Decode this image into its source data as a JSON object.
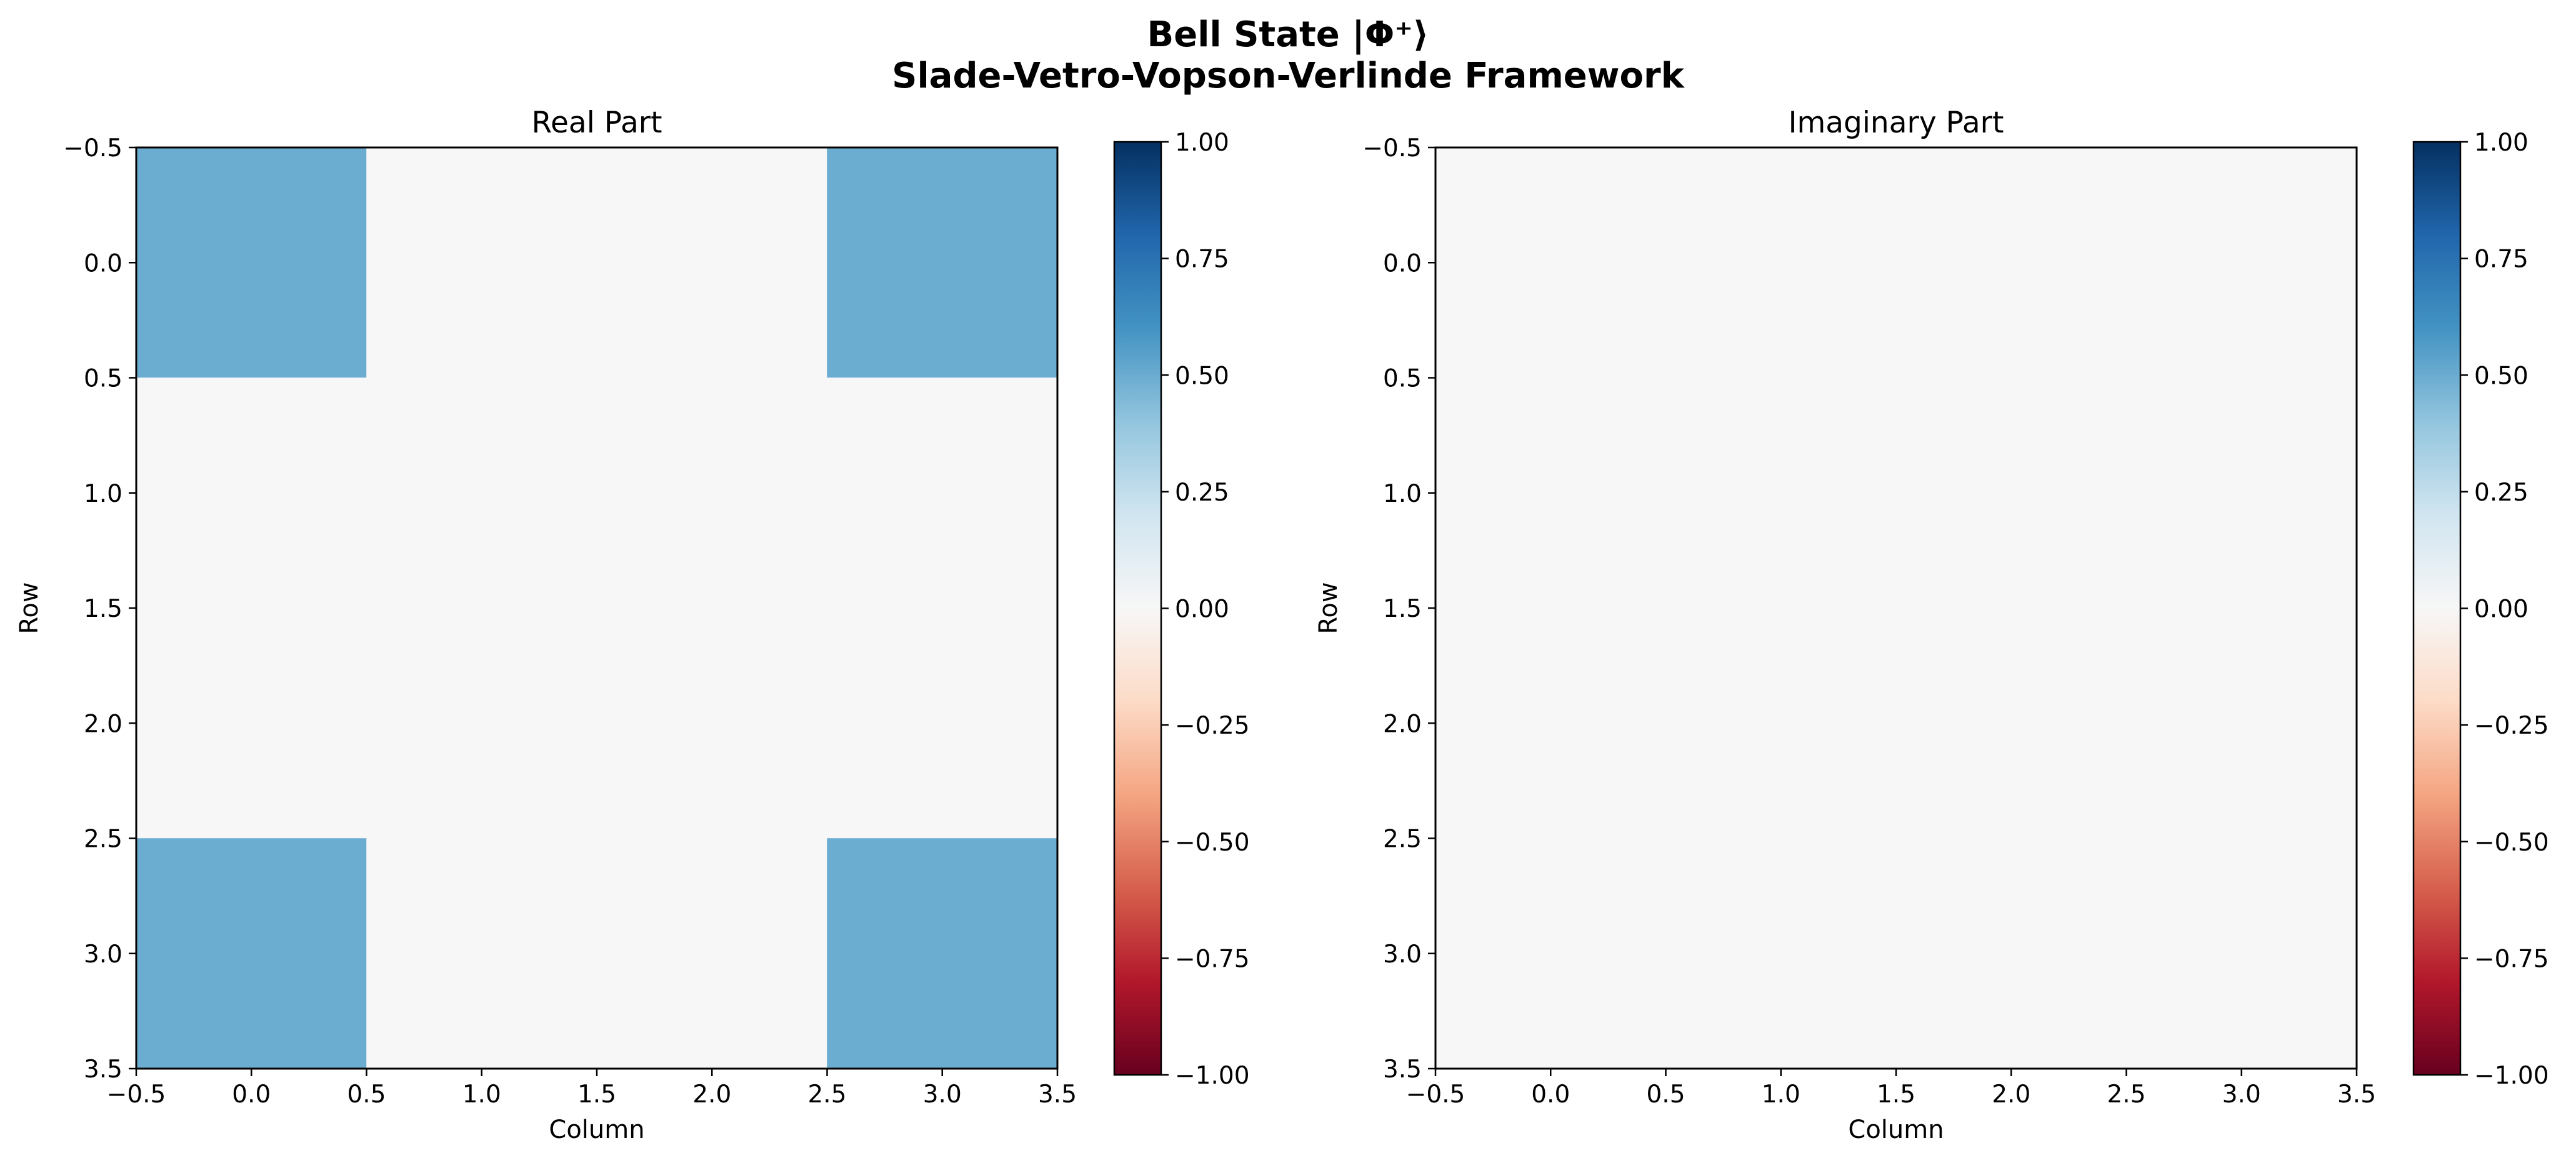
{
  "title_line1": "Bell State |Φ⁺⟩",
  "title_line2": "Slade-Vetro-Vopson-Verlinde Framework",
  "colormap": {
    "name": "RdBu",
    "stops": [
      "#67001f",
      "#b2182b",
      "#d6604d",
      "#f4a582",
      "#fddbc7",
      "#f7f7f7",
      "#d1e5f0",
      "#92c5de",
      "#4393c3",
      "#2166ac",
      "#053061"
    ],
    "vmin": -1.0,
    "vmax": 1.0,
    "ticks": [
      "1.00",
      "0.75",
      "0.50",
      "0.25",
      "0.00",
      "−0.25",
      "−0.50",
      "−0.75",
      "−1.00"
    ]
  },
  "chart_data": [
    {
      "type": "heatmap",
      "title": "Real Part",
      "xlabel": "Column",
      "ylabel": "Row",
      "xlim": [
        -0.5,
        3.5
      ],
      "ylim": [
        3.5,
        -0.5
      ],
      "x_ticks": [
        "−0.5",
        "0.0",
        "0.5",
        "1.0",
        "1.5",
        "2.0",
        "2.5",
        "3.0",
        "3.5"
      ],
      "y_ticks": [
        "−0.5",
        "0.0",
        "0.5",
        "1.0",
        "1.5",
        "2.0",
        "2.5",
        "3.0",
        "3.5"
      ],
      "matrix": [
        [
          0.5,
          0.0,
          0.0,
          0.5
        ],
        [
          0.0,
          0.0,
          0.0,
          0.0
        ],
        [
          0.0,
          0.0,
          0.0,
          0.0
        ],
        [
          0.5,
          0.0,
          0.0,
          0.5
        ]
      ]
    },
    {
      "type": "heatmap",
      "title": "Imaginary Part",
      "xlabel": "Column",
      "ylabel": "Row",
      "xlim": [
        -0.5,
        3.5
      ],
      "ylim": [
        3.5,
        -0.5
      ],
      "x_ticks": [
        "−0.5",
        "0.0",
        "0.5",
        "1.0",
        "1.5",
        "2.0",
        "2.5",
        "3.0",
        "3.5"
      ],
      "y_ticks": [
        "−0.5",
        "0.0",
        "0.5",
        "1.0",
        "1.5",
        "2.0",
        "2.5",
        "3.0",
        "3.5"
      ],
      "matrix": [
        [
          0.0,
          0.0,
          0.0,
          0.0
        ],
        [
          0.0,
          0.0,
          0.0,
          0.0
        ],
        [
          0.0,
          0.0,
          0.0,
          0.0
        ],
        [
          0.0,
          0.0,
          0.0,
          0.0
        ]
      ]
    }
  ]
}
